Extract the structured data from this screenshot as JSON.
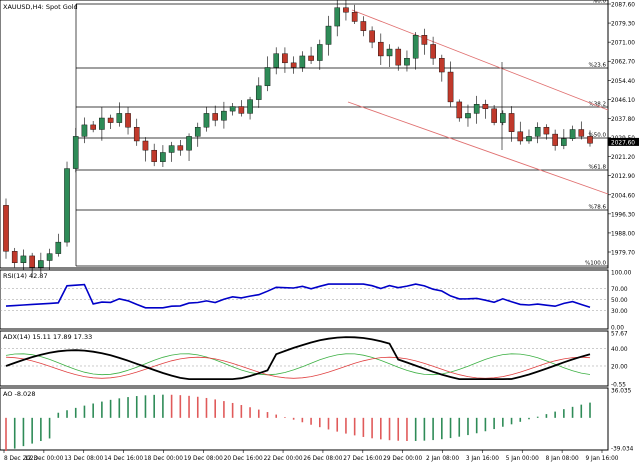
{
  "main_chart": {
    "title": "XAUUSD,H4: Spot Gold",
    "fib_labels": [
      "%0.0",
      "%23.6",
      "%38.2",
      "%50.0",
      "%61.8",
      "%78.6",
      "%100.0"
    ],
    "price_ticks": [
      "2087.60",
      "2079.30",
      "2071.00",
      "2062.70",
      "2054.40",
      "2046.10",
      "2037.80",
      "2029.50",
      "2021.20",
      "2012.90",
      "2004.60",
      "1996.30",
      "1988.00",
      "1979.70"
    ],
    "current_price": "2027.60"
  },
  "rsi": {
    "title": "RSI(14) 42.87",
    "ticks": [
      "100.00",
      "70.00",
      "50.00",
      "30.00",
      "0.00"
    ]
  },
  "adx": {
    "title": "ADX(14) 15.11 17.89 17.33",
    "ticks": [
      "57.67",
      "40.00",
      "20.00",
      "-0.55"
    ]
  },
  "ao": {
    "title": "AO -8.028",
    "ticks": [
      "36.035",
      "-39.034"
    ]
  },
  "time_axis": [
    "8 Dec 2023",
    "12 Dec 00:00",
    "13 Dec 08:00",
    "14 Dec 16:00",
    "18 Dec 00:00",
    "19 Dec 08:00",
    "20 Dec 16:00",
    "22 Dec 00:00",
    "26 Dec 08:00",
    "27 Dec 16:00",
    "29 Dec 00:00",
    "2 Jan 08:00",
    "3 Jan 16:00",
    "5 Jan 00:00",
    "8 Jan 08:00",
    "9 Jan 16:00"
  ],
  "colors": {
    "bull": "#2e8b57",
    "bear": "#c0392b",
    "rsi_line": "#0000c8",
    "channel": "#e07070",
    "adx_main": "#000000",
    "di_plus": "#3cb043",
    "di_minus": "#e04040",
    "ao_up": "#2e8b57",
    "ao_down": "#e05a5a"
  },
  "chart_data": {
    "type": "candlestick",
    "close_series": [
      1980,
      1975,
      1978,
      1973,
      1976,
      1979,
      1984,
      2016,
      2030,
      2035,
      2033,
      2038,
      2036,
      2040,
      2034,
      2028,
      2024,
      2019,
      2023,
      2026,
      2024,
      2030,
      2034,
      2040,
      2037,
      2041,
      2043,
      2040,
      2046,
      2052,
      2060,
      2066,
      2062,
      2060,
      2065,
      2063,
      2070,
      2078,
      2086,
      2084,
      2080,
      2076,
      2071,
      2065,
      2068,
      2061,
      2064,
      2074,
      2070,
      2064,
      2058,
      2045,
      2038,
      2040,
      2044,
      2042,
      2036,
      2040,
      2032,
      2028,
      2030,
      2034,
      2031,
      2026,
      2029,
      2033,
      2030,
      2027
    ]
  }
}
